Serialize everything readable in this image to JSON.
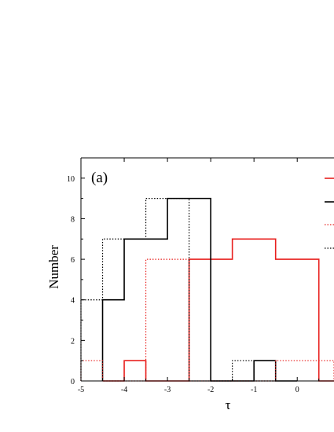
{
  "chart_data": {
    "type": "histogram",
    "panel_label": "(a)",
    "xlabel": "τ",
    "ylabel": "Number",
    "xlim": [
      -5,
      0.85
    ],
    "ylim": [
      0,
      11
    ],
    "xticks": [
      -5,
      -4,
      -3,
      -2,
      -1,
      0
    ],
    "yticks": [
      0,
      2,
      4,
      6,
      8,
      10
    ],
    "grid": false,
    "series": [
      {
        "color": "#e8201e",
        "dash": "solid",
        "bins": [
          {
            "x0": -4.5,
            "x1": -4.0,
            "y": 0
          },
          {
            "x0": -4.0,
            "x1": -3.5,
            "y": 1
          },
          {
            "x0": -3.5,
            "x1": -3.0,
            "y": 0
          },
          {
            "x0": -3.0,
            "x1": -2.5,
            "y": 0
          },
          {
            "x0": -2.5,
            "x1": -2.0,
            "y": 6
          },
          {
            "x0": -2.0,
            "x1": -1.5,
            "y": 6
          },
          {
            "x0": -1.5,
            "x1": -1.0,
            "y": 7
          },
          {
            "x0": -1.0,
            "x1": -0.5,
            "y": 7
          },
          {
            "x0": -0.5,
            "x1": 0.0,
            "y": 6
          },
          {
            "x0": 0.0,
            "x1": 0.5,
            "y": 6
          },
          {
            "x0": 0.5,
            "x1": 0.85,
            "y": 0
          }
        ]
      },
      {
        "color": "#000000",
        "dash": "solid",
        "bins": [
          {
            "x0": -4.5,
            "x1": -4.0,
            "y": 4
          },
          {
            "x0": -4.0,
            "x1": -3.5,
            "y": 7
          },
          {
            "x0": -3.5,
            "x1": -3.0,
            "y": 7
          },
          {
            "x0": -3.0,
            "x1": -2.5,
            "y": 9
          },
          {
            "x0": -2.5,
            "x1": -2.0,
            "y": 9
          },
          {
            "x0": -2.0,
            "x1": -1.5,
            "y": 0
          },
          {
            "x0": -1.5,
            "x1": -1.0,
            "y": 0
          },
          {
            "x0": -1.0,
            "x1": -0.5,
            "y": 1
          },
          {
            "x0": -0.5,
            "x1": 0.0,
            "y": 0
          }
        ]
      },
      {
        "color": "#e8201e",
        "dash": "dotted",
        "bins": [
          {
            "x0": -5.0,
            "x1": -4.5,
            "y": 1
          },
          {
            "x0": -4.5,
            "x1": -4.0,
            "y": 0
          },
          {
            "x0": -4.0,
            "x1": -3.5,
            "y": 0
          },
          {
            "x0": -3.5,
            "x1": -3.0,
            "y": 6
          },
          {
            "x0": -3.0,
            "x1": -2.5,
            "y": 6
          },
          {
            "x0": -2.5,
            "x1": -2.0,
            "y": 0
          },
          {
            "x0": -2.0,
            "x1": -1.5,
            "y": 0
          },
          {
            "x0": -1.5,
            "x1": -1.0,
            "y": 0
          },
          {
            "x0": -1.0,
            "x1": -0.5,
            "y": 0
          },
          {
            "x0": -0.5,
            "x1": 0.0,
            "y": 1
          },
          {
            "x0": 0.0,
            "x1": 0.5,
            "y": 1
          },
          {
            "x0": 0.5,
            "x1": 0.85,
            "y": 1
          }
        ]
      },
      {
        "color": "#000000",
        "dash": "dotted",
        "bins": [
          {
            "x0": -5.0,
            "x1": -4.5,
            "y": 4
          },
          {
            "x0": -4.5,
            "x1": -4.0,
            "y": 7
          },
          {
            "x0": -4.0,
            "x1": -3.5,
            "y": 7
          },
          {
            "x0": -3.5,
            "x1": -3.0,
            "y": 9
          },
          {
            "x0": -3.0,
            "x1": -2.5,
            "y": 9
          },
          {
            "x0": -2.5,
            "x1": -2.0,
            "y": 0
          },
          {
            "x0": -2.0,
            "x1": -1.5,
            "y": 0
          },
          {
            "x0": -1.5,
            "x1": -1.0,
            "y": 1
          },
          {
            "x0": -1.0,
            "x1": -0.5,
            "y": 0
          }
        ]
      }
    ]
  }
}
